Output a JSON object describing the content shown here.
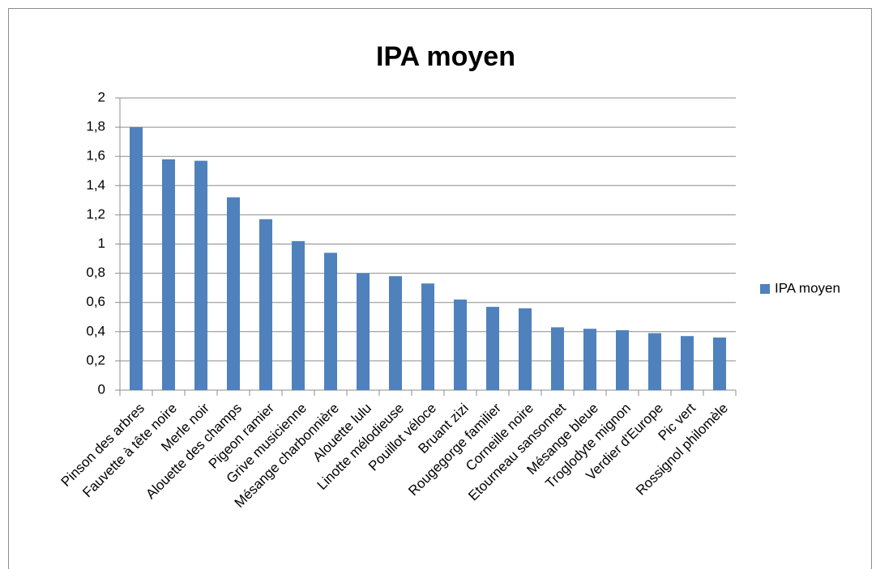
{
  "chart_data": {
    "type": "bar",
    "title": "IPA moyen",
    "categories": [
      "Pinson des arbres",
      "Fauvette à tête noire",
      "Merle noir",
      "Alouette des champs",
      "Pigeon ramier",
      "Grive musicienne",
      "Mésange charbonnière",
      "Alouette lulu",
      "Linotte mélodieuse",
      "Pouillot véloce",
      "Bruant zizi",
      "Rougegorge familier",
      "Corneille noire",
      "Etourneau sansonnet",
      "Mésange bleue",
      "Troglodyte mignon",
      "Verdier d'Europe",
      "Pic vert",
      "Rossignol philomèle"
    ],
    "series": [
      {
        "name": "IPA moyen",
        "color": "#4f81bd",
        "values": [
          1.8,
          1.58,
          1.57,
          1.32,
          1.17,
          1.02,
          0.94,
          0.8,
          0.78,
          0.73,
          0.62,
          0.57,
          0.56,
          0.43,
          0.42,
          0.41,
          0.39,
          0.37,
          0.36
        ]
      }
    ],
    "ylim": [
      0,
      2
    ],
    "yticks": [
      0,
      {
        "value": 0.2,
        "label": "0,2"
      },
      {
        "value": 0.4,
        "label": "0,4"
      },
      {
        "value": 0.6,
        "label": "0,6"
      },
      {
        "value": 0.8,
        "label": "0,8"
      },
      1,
      {
        "value": 1.2,
        "label": "1,2"
      },
      {
        "value": 1.4,
        "label": "1,4"
      },
      {
        "value": 1.6,
        "label": "1,6"
      },
      {
        "value": 1.8,
        "label": "1,8"
      },
      2
    ],
    "grid": true,
    "legend": "right"
  }
}
